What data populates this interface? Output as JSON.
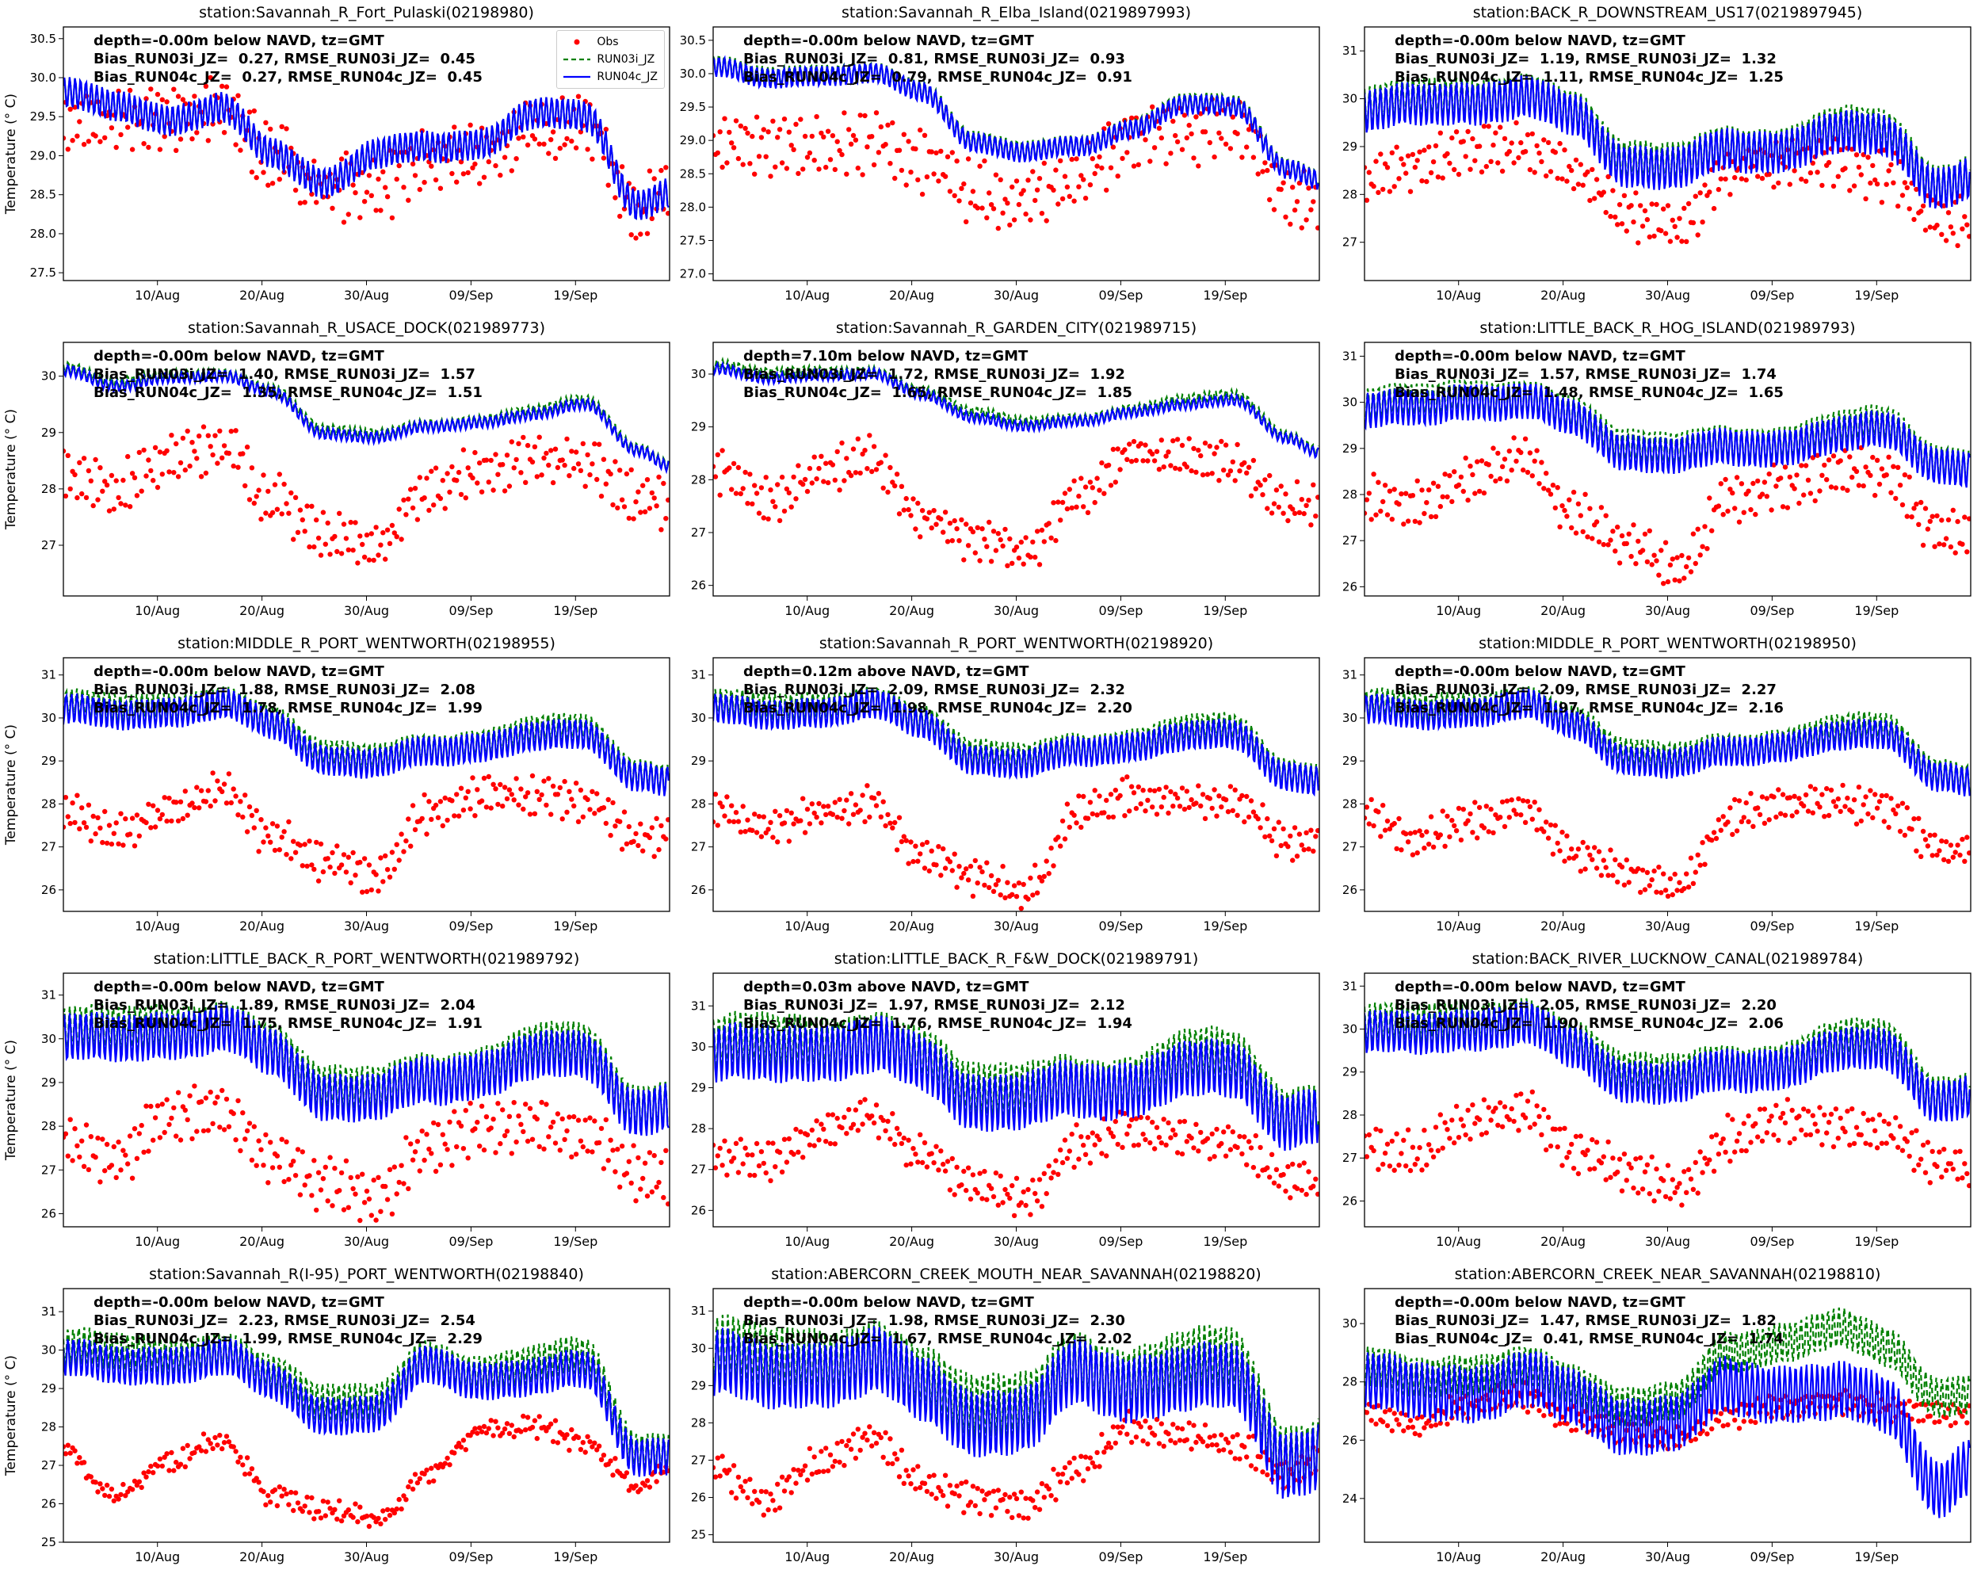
{
  "chart_data": {
    "type": "line",
    "layout": "5x3 grid of time-series subplots",
    "ylabel": "Temperature (° C)",
    "x_tick_labels": [
      "10/Aug",
      "20/Aug",
      "30/Aug",
      "09/Sep",
      "19/Sep"
    ],
    "x_tick_days": [
      9,
      19,
      29,
      39,
      49
    ],
    "x_range_days": [
      0,
      58
    ],
    "legend": {
      "placement": "top-right",
      "entries": [
        {
          "name": "Obs",
          "color": "#ff0000",
          "style": "dots"
        },
        {
          "name": "RUN03i_JZ",
          "color": "#008000",
          "style": "dashed"
        },
        {
          "name": "RUN04c_JZ",
          "color": "#0000ff",
          "style": "solid"
        }
      ]
    },
    "series_days": [
      0,
      5,
      10,
      15,
      20,
      25,
      30,
      35,
      40,
      45,
      50,
      55,
      58
    ],
    "panels": [
      {
        "title": "station:Savannah_R_Fort_Pulaski(02198980)",
        "depth": "depth=-0.00m below NAVD, tz=GMT",
        "bias03": "Bias_RUN03i_JZ=  0.27, RMSE_RUN03i_JZ=  0.45",
        "bias04": "Bias_RUN04c_JZ=  0.27, RMSE_RUN04c_JZ=  0.45",
        "ylim": [
          27.4,
          30.65
        ],
        "yticks": [
          "27.5",
          "28.0",
          "28.5",
          "29.0",
          "29.5",
          "30.0",
          "30.5"
        ],
        "obs": [
          29.4,
          29.4,
          29.5,
          29.6,
          29.0,
          28.6,
          28.6,
          28.9,
          29.0,
          29.3,
          29.4,
          28.3,
          28.5
        ],
        "obs_amp": 0.3,
        "run04c": [
          29.8,
          29.6,
          29.5,
          29.6,
          29.0,
          28.7,
          29.0,
          29.1,
          29.2,
          29.5,
          29.5,
          28.4,
          28.5
        ],
        "model_amp": 0.2,
        "run03i_delta": 0.0
      },
      {
        "title": "station:Savannah_R_Elba_Island(0219897993)",
        "depth": "depth=-0.00m below NAVD, tz=GMT",
        "bias03": "Bias_RUN03i_JZ=  0.81, RMSE_RUN03i_JZ=  0.93",
        "bias04": "Bias_RUN04c_JZ=  0.79, RMSE_RUN04c_JZ=  0.91",
        "ylim": [
          26.9,
          30.7
        ],
        "yticks": [
          "27.0",
          "27.5",
          "28.0",
          "28.5",
          "29.0",
          "29.5",
          "30.0",
          "30.5"
        ],
        "obs": [
          28.9,
          28.9,
          28.9,
          29.0,
          28.7,
          28.2,
          28.1,
          28.5,
          29.0,
          29.1,
          29.2,
          28.2,
          28.1
        ],
        "obs_amp": 0.35,
        "run04c": [
          30.1,
          29.9,
          30.0,
          30.0,
          29.7,
          29.0,
          28.8,
          28.9,
          29.2,
          29.5,
          29.5,
          28.6,
          28.4
        ],
        "model_amp": 0.15,
        "run03i_delta": 0.02
      },
      {
        "title": "station:BACK_R_DOWNSTREAM_US17(0219897945)",
        "depth": "depth=-0.00m below NAVD, tz=GMT",
        "bias03": "Bias_RUN03i_JZ=  1.19, RMSE_RUN03i_JZ=  1.32",
        "bias04": "Bias_RUN04c_JZ=  1.11, RMSE_RUN04c_JZ=  1.25",
        "ylim": [
          26.2,
          31.5
        ],
        "yticks": [
          "27",
          "28",
          "29",
          "30",
          "31"
        ],
        "obs": [
          28.3,
          28.6,
          28.9,
          29.0,
          28.5,
          27.6,
          27.3,
          28.5,
          28.7,
          28.6,
          28.4,
          27.5,
          27.4
        ],
        "obs_amp": 0.4,
        "run04c": [
          29.7,
          29.8,
          30.0,
          30.0,
          29.6,
          28.7,
          28.5,
          28.9,
          29.0,
          29.2,
          29.2,
          28.2,
          28.3
        ],
        "model_amp": 0.45,
        "run03i_delta": 0.08
      },
      {
        "title": "station:Savannah_R_USACE_DOCK(021989773)",
        "depth": "depth=-0.00m below NAVD, tz=GMT",
        "bias03": "Bias_RUN03i_JZ=  1.40, RMSE_RUN03i_JZ=  1.57",
        "bias04": "Bias_RUN04c_JZ=  1.35, RMSE_RUN04c_JZ=  1.51",
        "ylim": [
          26.1,
          30.6
        ],
        "yticks": [
          "27",
          "28",
          "29",
          "30"
        ],
        "obs": [
          28.3,
          28.0,
          28.5,
          28.8,
          27.8,
          27.2,
          27.0,
          28.0,
          28.3,
          28.5,
          28.5,
          27.8,
          27.8
        ],
        "obs_amp": 0.35,
        "run04c": [
          30.1,
          29.8,
          30.0,
          30.0,
          29.7,
          29.0,
          28.9,
          29.1,
          29.2,
          29.3,
          29.5,
          28.7,
          28.4
        ],
        "model_amp": 0.1,
        "run03i_delta": 0.05
      },
      {
        "title": "station:Savannah_R_GARDEN_CITY(021989715)",
        "depth": "depth=7.10m below NAVD, tz=GMT",
        "bias03": "Bias_RUN03i_JZ=  1.72, RMSE_RUN03i_JZ=  1.92",
        "bias04": "Bias_RUN04c_JZ=  1.65, RMSE_RUN04c_JZ=  1.85",
        "ylim": [
          25.8,
          30.6
        ],
        "yticks": [
          "26",
          "27",
          "28",
          "29",
          "30"
        ],
        "obs": [
          28.2,
          27.6,
          28.1,
          28.4,
          27.3,
          26.9,
          26.6,
          27.7,
          28.5,
          28.4,
          28.3,
          27.5,
          27.5
        ],
        "obs_amp": 0.3,
        "run04c": [
          30.1,
          29.9,
          30.0,
          30.0,
          29.6,
          29.2,
          29.0,
          29.1,
          29.3,
          29.4,
          29.5,
          28.8,
          28.5
        ],
        "model_amp": 0.1,
        "run03i_delta": 0.07
      },
      {
        "title": "station:LITTLE_BACK_R_HOG_ISLAND(021989793)",
        "depth": "depth=-0.00m below NAVD, tz=GMT",
        "bias03": "Bias_RUN03i_JZ=  1.57, RMSE_RUN03i_JZ=  1.74",
        "bias04": "Bias_RUN04c_JZ=  1.48, RMSE_RUN04c_JZ=  1.65",
        "ylim": [
          25.8,
          31.3
        ],
        "yticks": [
          "26",
          "27",
          "28",
          "29",
          "30",
          "31"
        ],
        "obs": [
          27.9,
          27.8,
          28.3,
          28.8,
          27.6,
          27.0,
          26.4,
          27.9,
          28.2,
          28.5,
          28.4,
          27.2,
          27.1
        ],
        "obs_amp": 0.4,
        "run04c": [
          29.8,
          29.8,
          30.1,
          30.0,
          29.6,
          29.0,
          28.8,
          29.0,
          29.1,
          29.2,
          29.4,
          28.7,
          28.5
        ],
        "model_amp": 0.4,
        "run03i_delta": 0.09
      },
      {
        "title": "station:MIDDLE_R_PORT_WENTWORTH(02198955)",
        "depth": "depth=-0.00m below NAVD, tz=GMT",
        "bias03": "Bias_RUN03i_JZ=  1.88, RMSE_RUN03i_JZ=  2.08",
        "bias04": "Bias_RUN04c_JZ=  1.78, RMSE_RUN04c_JZ=  1.99",
        "ylim": [
          25.5,
          31.4
        ],
        "yticks": [
          "26",
          "27",
          "28",
          "29",
          "30",
          "31"
        ],
        "obs": [
          27.8,
          27.3,
          27.8,
          28.3,
          27.2,
          26.7,
          26.3,
          27.8,
          28.2,
          28.2,
          28.1,
          27.2,
          27.2
        ],
        "obs_amp": 0.35,
        "run04c": [
          30.2,
          30.0,
          30.2,
          30.3,
          29.8,
          29.1,
          28.9,
          29.2,
          29.4,
          29.5,
          29.6,
          28.7,
          28.5
        ],
        "model_amp": 0.35,
        "run03i_delta": 0.1
      },
      {
        "title": "station:Savannah_R_PORT_WENTWORTH(02198920)",
        "depth": "depth=0.12m above NAVD, tz=GMT",
        "bias03": "Bias_RUN03i_JZ=  2.09, RMSE_RUN03i_JZ=  2.32",
        "bias04": "Bias_RUN04c_JZ=  1.98, RMSE_RUN04c_JZ=  2.20",
        "ylim": [
          25.5,
          31.4
        ],
        "yticks": [
          "26",
          "27",
          "28",
          "29",
          "30",
          "31"
        ],
        "obs": [
          27.9,
          27.4,
          27.8,
          28.0,
          26.8,
          26.3,
          26.0,
          27.8,
          28.2,
          28.1,
          28.0,
          27.1,
          27.2
        ],
        "obs_amp": 0.3,
        "run04c": [
          30.2,
          30.0,
          30.2,
          30.3,
          29.8,
          29.1,
          28.9,
          29.2,
          29.4,
          29.5,
          29.6,
          28.7,
          28.5
        ],
        "model_amp": 0.35,
        "run03i_delta": 0.11
      },
      {
        "title": "station:MIDDLE_R_PORT_WENTWORTH(02198950)",
        "depth": "depth=-0.00m below NAVD, tz=GMT",
        "bias03": "Bias_RUN03i_JZ=  2.09, RMSE_RUN03i_JZ=  2.27",
        "bias04": "Bias_RUN04c_JZ=  1.97, RMSE_RUN04c_JZ=  2.16",
        "ylim": [
          25.5,
          31.4
        ],
        "yticks": [
          "26",
          "27",
          "28",
          "29",
          "30",
          "31"
        ],
        "obs": [
          27.7,
          27.2,
          27.6,
          27.9,
          26.9,
          26.4,
          26.1,
          27.7,
          28.0,
          28.0,
          27.9,
          26.9,
          27.0
        ],
        "obs_amp": 0.3,
        "run04c": [
          30.2,
          30.0,
          30.2,
          30.3,
          29.8,
          29.1,
          28.9,
          29.2,
          29.4,
          29.5,
          29.6,
          28.7,
          28.5
        ],
        "model_amp": 0.35,
        "run03i_delta": 0.12
      },
      {
        "title": "station:LITTLE_BACK_R_PORT_WENTWORTH(021989792)",
        "depth": "depth=-0.00m below NAVD, tz=GMT",
        "bias03": "Bias_RUN03i_JZ=  1.89, RMSE_RUN03i_JZ=  2.04",
        "bias04": "Bias_RUN04c_JZ=  1.75, RMSE_RUN04c_JZ=  1.91",
        "ylim": [
          25.7,
          31.5
        ],
        "yticks": [
          "26",
          "27",
          "28",
          "29",
          "30",
          "31"
        ],
        "obs": [
          27.6,
          27.2,
          28.2,
          28.4,
          27.3,
          26.7,
          26.4,
          27.6,
          28.0,
          28.0,
          27.8,
          26.9,
          26.8
        ],
        "obs_amp": 0.5,
        "run04c": [
          30.0,
          29.9,
          30.2,
          30.2,
          29.6,
          28.8,
          28.6,
          29.0,
          29.3,
          29.5,
          29.6,
          28.4,
          28.4
        ],
        "model_amp": 0.55,
        "run03i_delta": 0.14
      },
      {
        "title": "station:LITTLE_BACK_R_F&W_DOCK(021989791)",
        "depth": "depth=0.03m above NAVD, tz=GMT",
        "bias03": "Bias_RUN03i_JZ=  1.97, RMSE_RUN03i_JZ=  2.12",
        "bias04": "Bias_RUN04c_JZ=  1.76, RMSE_RUN04c_JZ=  1.94",
        "ylim": [
          25.6,
          31.8
        ],
        "yticks": [
          "26",
          "27",
          "28",
          "29",
          "30",
          "31"
        ],
        "obs": [
          27.3,
          27.2,
          27.9,
          28.3,
          27.4,
          26.6,
          26.3,
          27.6,
          28.0,
          27.8,
          27.6,
          26.8,
          26.6
        ],
        "obs_amp": 0.35,
        "run04c": [
          29.8,
          29.7,
          30.0,
          30.0,
          29.5,
          28.8,
          28.6,
          28.9,
          29.1,
          29.3,
          29.4,
          28.3,
          28.3
        ],
        "model_amp": 0.7,
        "run03i_delta": 0.21
      },
      {
        "title": "station:BACK_RIVER_LUCKNOW_CANAL(021989784)",
        "depth": "depth=-0.00m below NAVD, tz=GMT",
        "bias03": "Bias_RUN03i_JZ=  2.05, RMSE_RUN03i_JZ=  2.20",
        "bias04": "Bias_RUN04c_JZ=  1.90, RMSE_RUN04c_JZ=  2.06",
        "ylim": [
          25.4,
          31.3
        ],
        "yticks": [
          "26",
          "27",
          "28",
          "29",
          "30",
          "31"
        ],
        "obs": [
          27.2,
          27.1,
          27.9,
          28.1,
          27.2,
          26.7,
          26.3,
          27.5,
          27.9,
          27.7,
          27.6,
          26.9,
          26.7
        ],
        "obs_amp": 0.4,
        "run04c": [
          29.9,
          29.8,
          30.1,
          30.1,
          29.5,
          28.9,
          28.7,
          29.0,
          29.2,
          29.4,
          29.5,
          28.4,
          28.4
        ],
        "model_amp": 0.5,
        "run03i_delta": 0.15
      },
      {
        "title": "station:Savannah_R(I-95)_PORT_WENTWORTH(02198840)",
        "depth": "depth=-0.00m below NAVD, tz=GMT",
        "bias03": "Bias_RUN03i_JZ=  2.23, RMSE_RUN03i_JZ=  2.54",
        "bias04": "Bias_RUN04c_JZ=  1.99, RMSE_RUN04c_JZ=  2.29",
        "ylim": [
          25.0,
          31.6
        ],
        "yticks": [
          "25",
          "26",
          "27",
          "28",
          "29",
          "30",
          "31"
        ],
        "obs": [
          27.4,
          26.2,
          27.1,
          27.7,
          26.2,
          25.8,
          25.6,
          26.8,
          27.9,
          28.0,
          27.6,
          26.4,
          26.9
        ],
        "obs_amp": 0.15,
        "run04c": [
          29.8,
          29.5,
          29.7,
          29.8,
          29.1,
          28.4,
          28.3,
          29.6,
          29.3,
          29.2,
          29.5,
          27.3,
          27.2
        ],
        "model_amp": 0.5,
        "run03i_delta": 0.24
      },
      {
        "title": "station:ABERCORN_CREEK_MOUTH_NEAR_SAVANNAH(02198820)",
        "depth": "depth=-0.00m below NAVD, tz=GMT",
        "bias03": "Bias_RUN03i_JZ=  1.98, RMSE_RUN03i_JZ=  2.30",
        "bias04": "Bias_RUN04c_JZ=  1.67, RMSE_RUN04c_JZ=  2.02",
        "ylim": [
          24.8,
          31.6
        ],
        "yticks": [
          "25",
          "26",
          "27",
          "28",
          "29",
          "30",
          "31"
        ],
        "obs": [
          26.8,
          25.9,
          26.9,
          27.6,
          26.4,
          26.0,
          25.8,
          26.8,
          27.9,
          27.6,
          27.4,
          26.6,
          27.0
        ],
        "obs_amp": 0.3,
        "run04c": [
          29.6,
          29.1,
          29.5,
          29.6,
          28.8,
          28.2,
          28.0,
          29.3,
          29.1,
          29.0,
          29.2,
          27.0,
          27.0
        ],
        "model_amp": 0.9,
        "run03i_delta": 0.31
      },
      {
        "title": "station:ABERCORN_CREEK_NEAR_SAVANNAH(02198810)",
        "depth": "depth=-0.00m below NAVD, tz=GMT",
        "bias03": "Bias_RUN03i_JZ=  1.47, RMSE_RUN03i_JZ=  1.82",
        "bias04": "Bias_RUN04c_JZ=  0.41, RMSE_RUN04c_JZ=  1.74",
        "ylim": [
          22.5,
          31.2
        ],
        "yticks": [
          "24",
          "26",
          "28",
          "30"
        ],
        "obs": [
          27.0,
          26.5,
          27.2,
          27.5,
          26.7,
          26.3,
          26.0,
          26.9,
          27.2,
          27.3,
          27.1,
          26.9,
          26.8
        ],
        "obs_amp": 0.35,
        "run04c": [
          28.0,
          27.5,
          27.8,
          28.0,
          27.3,
          26.7,
          26.5,
          27.8,
          27.8,
          27.5,
          27.2,
          24.5,
          25.0
        ],
        "model_amp": 1.0,
        "run03i": [
          28.5,
          28.0,
          28.4,
          28.5,
          27.8,
          27.3,
          27.3,
          29.0,
          29.5,
          29.7,
          29.2,
          27.6,
          27.5
        ]
      }
    ]
  }
}
